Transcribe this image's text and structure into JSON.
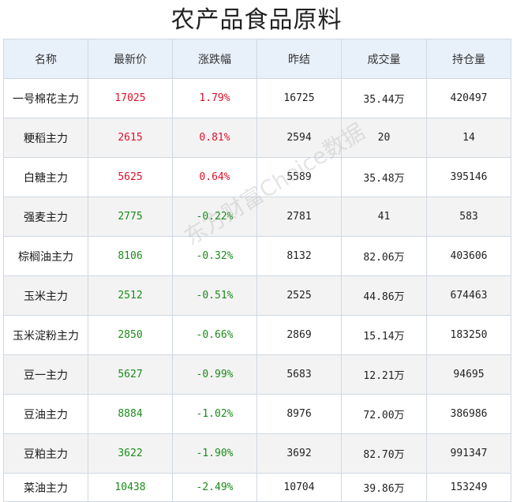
{
  "title": "农产品食品原料",
  "watermark": "东方财富Choice数据",
  "headers": [
    "名称",
    "最新价",
    "涨跌幅",
    "昨结",
    "成交量",
    "持仓量"
  ],
  "colors": {
    "up": "#e0102a",
    "down": "#1a8c1a",
    "header_bg": "#e8f0fa"
  },
  "rows": [
    {
      "name": "一号棉花主力",
      "price": "17025",
      "change": "1.79%",
      "dir": "up",
      "prev": "16725",
      "volume": "35.44万",
      "oi": "420497"
    },
    {
      "name": "粳稻主力",
      "price": "2615",
      "change": "0.81%",
      "dir": "up",
      "prev": "2594",
      "volume": "20",
      "oi": "14"
    },
    {
      "name": "白糖主力",
      "price": "5625",
      "change": "0.64%",
      "dir": "up",
      "prev": "5589",
      "volume": "35.48万",
      "oi": "395146"
    },
    {
      "name": "强麦主力",
      "price": "2775",
      "change": "-0.22%",
      "dir": "down",
      "prev": "2781",
      "volume": "41",
      "oi": "583"
    },
    {
      "name": "棕榈油主力",
      "price": "8106",
      "change": "-0.32%",
      "dir": "down",
      "prev": "8132",
      "volume": "82.06万",
      "oi": "403606"
    },
    {
      "name": "玉米主力",
      "price": "2512",
      "change": "-0.51%",
      "dir": "down",
      "prev": "2525",
      "volume": "44.86万",
      "oi": "674463"
    },
    {
      "name": "玉米淀粉主力",
      "price": "2850",
      "change": "-0.66%",
      "dir": "down",
      "prev": "2869",
      "volume": "15.14万",
      "oi": "183250"
    },
    {
      "name": "豆一主力",
      "price": "5627",
      "change": "-0.99%",
      "dir": "down",
      "prev": "5683",
      "volume": "12.21万",
      "oi": "94695"
    },
    {
      "name": "豆油主力",
      "price": "8884",
      "change": "-1.02%",
      "dir": "down",
      "prev": "8976",
      "volume": "72.00万",
      "oi": "386986"
    },
    {
      "name": "豆粕主力",
      "price": "3622",
      "change": "-1.90%",
      "dir": "down",
      "prev": "3692",
      "volume": "82.70万",
      "oi": "991347"
    },
    {
      "name": "菜油主力",
      "price": "10438",
      "change": "-2.49%",
      "dir": "down",
      "prev": "10704",
      "volume": "39.86万",
      "oi": "153249"
    }
  ]
}
